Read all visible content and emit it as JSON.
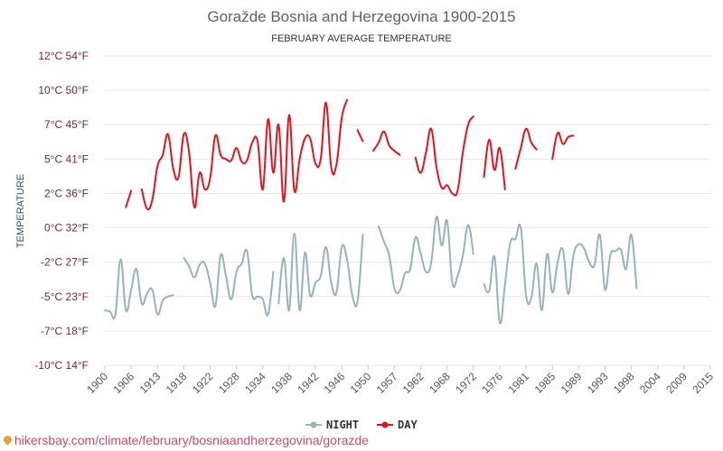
{
  "chart_data": {
    "type": "line",
    "title": "Goražde Bosnia and Herzegovina 1900-2015",
    "subtitle": "FEBRUARY AVERAGE TEMPERATURE",
    "ylabel": "TEMPERATURE",
    "ylim": [
      -10,
      12
    ],
    "xlim": [
      1900,
      2015
    ],
    "y_ticks": [
      {
        "value": -10,
        "label": "-10°C 14°F"
      },
      {
        "value": -7.5,
        "label": "-7°C 18°F"
      },
      {
        "value": -5,
        "label": "-5°C 23°F"
      },
      {
        "value": -2.5,
        "label": "-2°C 27°F"
      },
      {
        "value": 0,
        "label": "0°C 32°F"
      },
      {
        "value": 2.5,
        "label": "2°C 36°F"
      },
      {
        "value": 5,
        "label": "5°C 41°F"
      },
      {
        "value": 7.5,
        "label": "7°C 45°F"
      },
      {
        "value": 10,
        "label": "10°C 50°F"
      },
      {
        "value": 12.5,
        "label": "12°C 54°F"
      }
    ],
    "x_ticks": [
      "1900",
      "1906",
      "1913",
      "1918",
      "1922",
      "1928",
      "1934",
      "1938",
      "1942",
      "1946",
      "1950",
      "1957",
      "1962",
      "1968",
      "1972",
      "1976",
      "1981",
      "1985",
      "1989",
      "1993",
      "1998",
      "2004",
      "2009",
      "2015"
    ],
    "grid": true,
    "legend_position": "bottom",
    "series": [
      {
        "name": "NIGHT",
        "color": "#94b3bd",
        "segments": [
          [
            [
              1900,
              -6
            ],
            [
              1901,
              -6.1
            ],
            [
              1902,
              -6.3
            ],
            [
              1903,
              -2.3
            ],
            [
              1904,
              -6
            ],
            [
              1905,
              -4.5
            ],
            [
              1906,
              -3
            ],
            [
              1907,
              -5.5
            ],
            [
              1908,
              -4.8
            ],
            [
              1909,
              -4.5
            ],
            [
              1910,
              -6.3
            ],
            [
              1911,
              -5.3
            ],
            [
              1912,
              -5
            ],
            [
              1913,
              -4.9
            ]
          ],
          [
            [
              1915,
              -2.2
            ],
            [
              1916,
              -2.8
            ],
            [
              1917,
              -3.6
            ],
            [
              1918,
              -2.7
            ],
            [
              1919,
              -2.6
            ],
            [
              1920,
              -4
            ],
            [
              1921,
              -5.7
            ],
            [
              1922,
              -2
            ],
            [
              1923,
              -3.5
            ],
            [
              1924,
              -5.2
            ],
            [
              1925,
              -3.2
            ],
            [
              1926,
              -2.6
            ],
            [
              1927,
              -1.7
            ],
            [
              1928,
              -4.9
            ],
            [
              1929,
              -5
            ],
            [
              1930,
              -5.2
            ],
            [
              1931,
              -6.3
            ],
            [
              1932,
              -3.2
            ]
          ],
          [
            [
              1933,
              -5.5
            ],
            [
              1934,
              -2.2
            ],
            [
              1935,
              -6
            ],
            [
              1936,
              -0.4
            ],
            [
              1937,
              -6
            ],
            [
              1938,
              -1.8
            ],
            [
              1939,
              -4.9
            ],
            [
              1940,
              -4
            ],
            [
              1941,
              -3.5
            ],
            [
              1942,
              -1.4
            ],
            [
              1943,
              -4
            ],
            [
              1944,
              -4.7
            ],
            [
              1945,
              -1.4
            ],
            [
              1946,
              -2.3
            ],
            [
              1947,
              -4.9
            ],
            [
              1948,
              -5.3
            ],
            [
              1949,
              -0.5
            ]
          ],
          [
            [
              1952,
              0.1
            ],
            [
              1953,
              -1
            ],
            [
              1954,
              -2
            ],
            [
              1955,
              -4.4
            ],
            [
              1956,
              -4.6
            ],
            [
              1957,
              -3.3
            ],
            [
              1958,
              -3
            ],
            [
              1959,
              -0.7
            ],
            [
              1960,
              -1.9
            ],
            [
              1961,
              -3.2
            ],
            [
              1962,
              -2.5
            ],
            [
              1963,
              0.8
            ],
            [
              1964,
              -1.3
            ],
            [
              1965,
              0.5
            ],
            [
              1966,
              -4
            ],
            [
              1967,
              -3.5
            ],
            [
              1968,
              -2
            ],
            [
              1969,
              0.2
            ],
            [
              1970,
              -1.9
            ]
          ],
          [
            [
              1972,
              -4.1
            ],
            [
              1973,
              -4.6
            ],
            [
              1974,
              -2.1
            ],
            [
              1975,
              -6.9
            ],
            [
              1976,
              -4.1
            ],
            [
              1977,
              -1.1
            ],
            [
              1978,
              -0.8
            ],
            [
              1979,
              0
            ],
            [
              1980,
              -4.9
            ],
            [
              1981,
              -5.1
            ],
            [
              1982,
              -2.6
            ],
            [
              1983,
              -6
            ],
            [
              1984,
              -1.9
            ],
            [
              1985,
              -4.7
            ],
            [
              1986,
              -2.5
            ],
            [
              1987,
              -1.6
            ],
            [
              1988,
              -4.8
            ],
            [
              1989,
              -2
            ],
            [
              1990,
              -1.2
            ],
            [
              1991,
              -1.5
            ],
            [
              1992,
              -2.5
            ],
            [
              1993,
              -2.7
            ],
            [
              1994,
              -0.5
            ],
            [
              1995,
              -4.5
            ],
            [
              1996,
              -2
            ],
            [
              1997,
              -1.7
            ],
            [
              1998,
              -1.6
            ],
            [
              1999,
              -3
            ],
            [
              2000,
              -0.5
            ],
            [
              2001,
              -4.4
            ]
          ]
        ]
      },
      {
        "name": "DAY",
        "color": "#e8121b",
        "segments": [
          [
            [
              1904,
              1.5
            ],
            [
              1905,
              2.7
            ]
          ],
          [
            [
              1907,
              2.8
            ],
            [
              1908,
              1.4
            ],
            [
              1909,
              2
            ],
            [
              1910,
              4.5
            ],
            [
              1911,
              5.3
            ],
            [
              1912,
              6.8
            ],
            [
              1913,
              4.3
            ],
            [
              1914,
              3.7
            ],
            [
              1915,
              6.8
            ],
            [
              1916,
              5.5
            ],
            [
              1917,
              1.5
            ],
            [
              1918,
              4
            ],
            [
              1919,
              2.8
            ],
            [
              1920,
              3.6
            ],
            [
              1921,
              6.7
            ],
            [
              1922,
              5.3
            ],
            [
              1923,
              5
            ],
            [
              1924,
              4.9
            ],
            [
              1925,
              5.8
            ],
            [
              1926,
              4.8
            ],
            [
              1927,
              4.9
            ],
            [
              1928,
              6.2
            ],
            [
              1929,
              6.3
            ],
            [
              1930,
              2.8
            ],
            [
              1931,
              7.9
            ],
            [
              1932,
              4
            ],
            [
              1933,
              7.5
            ],
            [
              1934,
              1.9
            ],
            [
              1935,
              8.2
            ],
            [
              1936,
              2.7
            ],
            [
              1937,
              5
            ],
            [
              1938,
              6.5
            ],
            [
              1939,
              6.5
            ],
            [
              1940,
              4.7
            ],
            [
              1941,
              5
            ],
            [
              1942,
              9.1
            ],
            [
              1943,
              4.4
            ],
            [
              1944,
              4.6
            ],
            [
              1945,
              8
            ],
            [
              1946,
              9.3
            ]
          ],
          [
            [
              1948,
              7.1
            ],
            [
              1949,
              6.3
            ]
          ],
          [
            [
              1951,
              5.6
            ],
            [
              1952,
              6.2
            ],
            [
              1953,
              7
            ],
            [
              1954,
              6
            ],
            [
              1955,
              5.6
            ],
            [
              1956,
              5.3
            ]
          ],
          [
            [
              1959,
              5.1
            ],
            [
              1960,
              4
            ],
            [
              1961,
              5.5
            ],
            [
              1962,
              7.2
            ],
            [
              1963,
              4.4
            ],
            [
              1964,
              2.9
            ],
            [
              1965,
              3.1
            ],
            [
              1966,
              2.5
            ],
            [
              1967,
              2.7
            ],
            [
              1968,
              5.5
            ],
            [
              1969,
              7.5
            ],
            [
              1970,
              8.1
            ]
          ],
          [
            [
              1972,
              3.7
            ],
            [
              1973,
              6.4
            ],
            [
              1974,
              4.2
            ],
            [
              1975,
              5.8
            ],
            [
              1976,
              2.8
            ]
          ],
          [
            [
              1978,
              4.3
            ],
            [
              1979,
              5.8
            ],
            [
              1980,
              7.2
            ],
            [
              1981,
              6.2
            ],
            [
              1982,
              5.7
            ]
          ],
          [
            [
              1985,
              5
            ],
            [
              1986,
              6.9
            ],
            [
              1987,
              6.1
            ],
            [
              1988,
              6.6
            ],
            [
              1989,
              6.7
            ]
          ]
        ]
      }
    ]
  },
  "legend": {
    "night_label": "NIGHT",
    "day_label": "DAY"
  },
  "source": {
    "text": "hikersbay.com/climate/february/bosniaandherzegovina/gorazde"
  }
}
